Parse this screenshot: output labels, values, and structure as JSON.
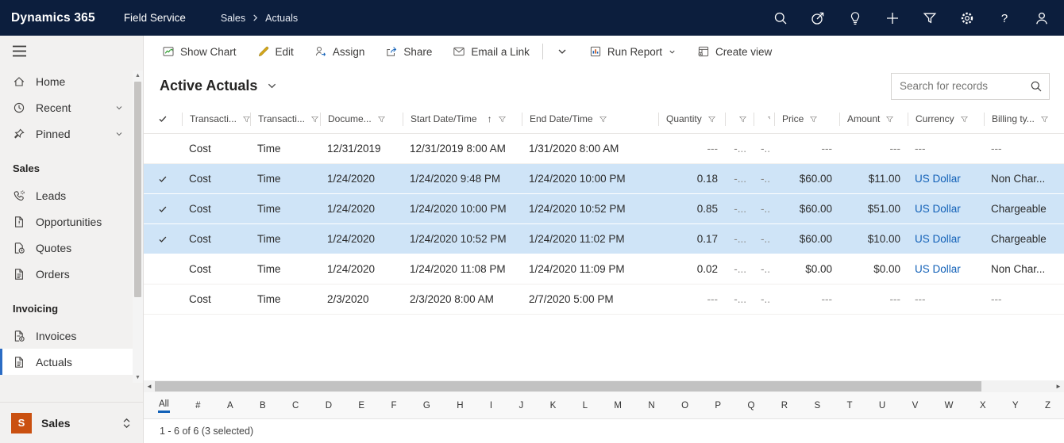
{
  "topbar": {
    "brand": "Dynamics 365",
    "app": "Field Service",
    "breadcrumb": [
      "Sales",
      "Actuals"
    ],
    "icons": [
      {
        "name": "search"
      },
      {
        "name": "assistant"
      },
      {
        "name": "lightbulb"
      },
      {
        "name": "add"
      },
      {
        "name": "filter"
      },
      {
        "name": "settings"
      },
      {
        "name": "help"
      },
      {
        "name": "account"
      }
    ]
  },
  "command_bar": {
    "items": [
      {
        "label": "Show Chart",
        "icon": "show-chart"
      },
      {
        "label": "Edit",
        "icon": "edit"
      },
      {
        "label": "Assign",
        "icon": "assign"
      },
      {
        "label": "Share",
        "icon": "share"
      },
      {
        "label": "Email a Link",
        "icon": "email"
      },
      {
        "separator": true
      },
      {
        "label": "",
        "icon": "chevron-down",
        "name": "more-commands-button"
      },
      {
        "label": "Run Report",
        "icon": "report",
        "chevron": true
      },
      {
        "label": "Create view",
        "icon": "create-view"
      }
    ]
  },
  "sidebar": {
    "items": [
      {
        "label": "Home",
        "icon": "home"
      },
      {
        "label": "Recent",
        "icon": "recent",
        "chevron": true
      },
      {
        "label": "Pinned",
        "icon": "pinned",
        "chevron": true
      },
      {
        "group": "Sales"
      },
      {
        "label": "Leads",
        "icon": "leads"
      },
      {
        "label": "Opportunities",
        "icon": "opportunities"
      },
      {
        "label": "Quotes",
        "icon": "quotes"
      },
      {
        "label": "Orders",
        "icon": "orders"
      },
      {
        "group": "Invoicing"
      },
      {
        "label": "Invoices",
        "icon": "invoices"
      },
      {
        "label": "Actuals",
        "icon": "actuals",
        "selected": true
      }
    ],
    "area": {
      "initial": "S",
      "label": "Sales"
    }
  },
  "view": {
    "title": "Active Actuals",
    "search_placeholder": "Search for records"
  },
  "table": {
    "columns": [
      {
        "label": "",
        "type": "check"
      },
      {
        "label": "Transacti...",
        "filter": true
      },
      {
        "label": "Transacti...",
        "filter": true
      },
      {
        "label": "Docume...",
        "filter": true
      },
      {
        "label": "Start Date/Time",
        "filter": true,
        "sort": "asc"
      },
      {
        "label": "End Date/Time",
        "filter": true
      },
      {
        "label": "Quantity",
        "filter": true,
        "align": "right"
      },
      {
        "label": "",
        "filter": true,
        "align": "right"
      },
      {
        "label": "",
        "partial": true,
        "align": "right"
      },
      {
        "label": "Price",
        "filter": true,
        "align": "right"
      },
      {
        "label": "Amount",
        "filter": true,
        "align": "right"
      },
      {
        "label": "Currency",
        "filter": true
      },
      {
        "label": "Billing ty...",
        "filter": true
      }
    ],
    "rows": [
      {
        "selected": false,
        "cells": [
          "Cost",
          "Time",
          "12/31/2019",
          "12/31/2019 8:00 AM",
          "1/31/2020 8:00 AM",
          "---",
          "-...",
          "-..",
          "---",
          "---",
          "---",
          "---"
        ]
      },
      {
        "selected": true,
        "cells": [
          "Cost",
          "Time",
          "1/24/2020",
          "1/24/2020 9:48 PM",
          "1/24/2020 10:00 PM",
          "0.18",
          "-...",
          "-..",
          "$60.00",
          "$11.00",
          "US Dollar",
          "Non Char..."
        ]
      },
      {
        "selected": true,
        "cells": [
          "Cost",
          "Time",
          "1/24/2020",
          "1/24/2020 10:00 PM",
          "1/24/2020 10:52 PM",
          "0.85",
          "-...",
          "-..",
          "$60.00",
          "$51.00",
          "US Dollar",
          "Chargeable"
        ]
      },
      {
        "selected": true,
        "cells": [
          "Cost",
          "Time",
          "1/24/2020",
          "1/24/2020 10:52 PM",
          "1/24/2020 11:02 PM",
          "0.17",
          "-...",
          "-..",
          "$60.00",
          "$10.00",
          "US Dollar",
          "Chargeable"
        ]
      },
      {
        "selected": false,
        "cells": [
          "Cost",
          "Time",
          "1/24/2020",
          "1/24/2020 11:08 PM",
          "1/24/2020 11:09 PM",
          "0.02",
          "-...",
          "-..",
          "$0.00",
          "$0.00",
          "US Dollar",
          "Non Char..."
        ]
      },
      {
        "selected": false,
        "cells": [
          "Cost",
          "Time",
          "2/3/2020",
          "2/3/2020 8:00 AM",
          "2/7/2020 5:00 PM",
          "---",
          "-...",
          "-..",
          "---",
          "---",
          "---",
          "---"
        ]
      }
    ]
  },
  "jump_bar": [
    "All",
    "#",
    "A",
    "B",
    "C",
    "D",
    "E",
    "F",
    "G",
    "H",
    "I",
    "J",
    "K",
    "L",
    "M",
    "N",
    "O",
    "P",
    "Q",
    "R",
    "S",
    "T",
    "U",
    "V",
    "W",
    "X",
    "Y",
    "Z"
  ],
  "status": {
    "text": "1 - 6 of 6 (3 selected)"
  },
  "colors": {
    "accent": "#1160b7",
    "selected_row": "#cfe4f7",
    "topbar": "#0c1e3d",
    "area_tile": "#ca5010"
  }
}
